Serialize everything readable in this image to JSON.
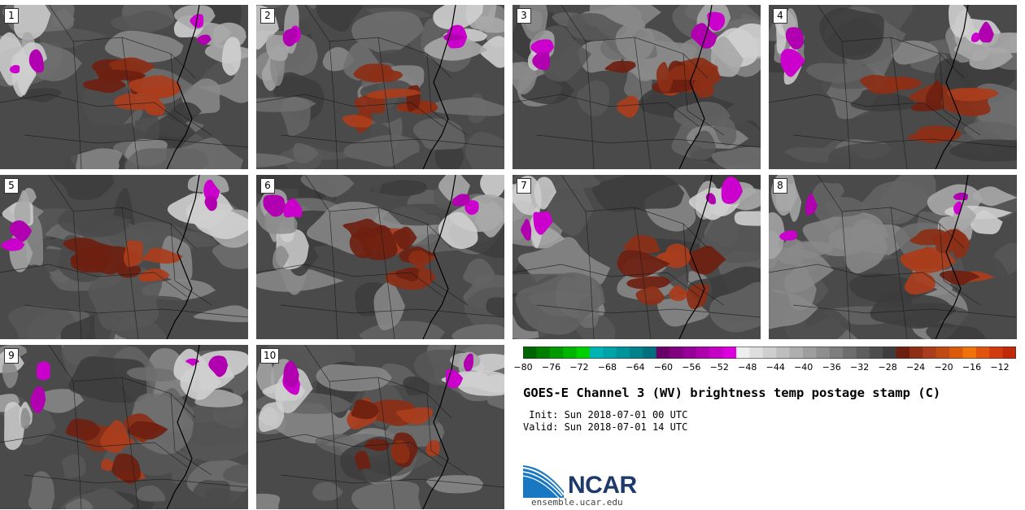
{
  "panels": [
    {
      "number": "1"
    },
    {
      "number": "2"
    },
    {
      "number": "3"
    },
    {
      "number": "4"
    },
    {
      "number": "5"
    },
    {
      "number": "6"
    },
    {
      "number": "7"
    },
    {
      "number": "8"
    },
    {
      "number": "9"
    },
    {
      "number": "10"
    }
  ],
  "colorbar": {
    "ticks": [
      "−80",
      "−76",
      "−72",
      "−68",
      "−64",
      "−60",
      "−56",
      "−52",
      "−48",
      "−44",
      "−40",
      "−36",
      "−32",
      "−28",
      "−24",
      "−20",
      "−16",
      "−12"
    ],
    "colors": [
      "#006400",
      "#007f00",
      "#009a00",
      "#00b400",
      "#00cf00",
      "#00b4b4",
      "#00a3a8",
      "#00929a",
      "#00818c",
      "#00707e",
      "#680068",
      "#80007f",
      "#960096",
      "#ad00ad",
      "#c400c4",
      "#dc00dc",
      "#eeeeee",
      "#dedede",
      "#cecece",
      "#bebebe",
      "#aeaeae",
      "#9e9e9e",
      "#8e8e8e",
      "#7e7e7e",
      "#6e6e6e",
      "#5e5e5e",
      "#4e4e4e",
      "#3e3e3e",
      "#6e2010",
      "#8c2f16",
      "#aa3e1c",
      "#c04a14",
      "#d95a0a",
      "#f0720a",
      "#e05410",
      "#d03c10",
      "#c02a0a"
    ]
  },
  "title": "GOES-E Channel 3 (WV) brightness temp postage stamp (C)",
  "init_line": " Init: Sun 2018-07-01 00 UTC",
  "valid_line": "Valid: Sun 2018-07-01 14 UTC",
  "logo": {
    "text": "NCAR",
    "site": "ensemble.ucar.edu"
  }
}
